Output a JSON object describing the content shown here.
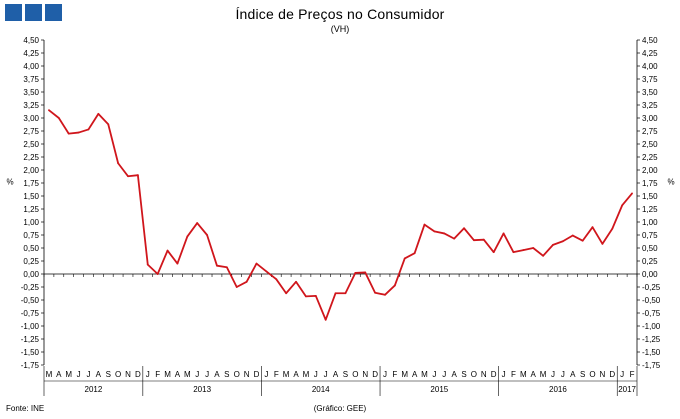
{
  "header": {
    "title": "Índice de Preços no Consumidor",
    "subtitle": "(VH)"
  },
  "footer": {
    "source": "Fonte: INE",
    "credit": "(Gráfico: GEE)"
  },
  "chart_data": {
    "type": "line",
    "title": "Índice de Preços no Consumidor",
    "subtitle": "(VH)",
    "ylabel_left": "%",
    "ylabel_right": "%",
    "ylim": [
      -1.75,
      4.5
    ],
    "ytick_step": 0.25,
    "ytick_labels": [
      "4,50",
      "4,25",
      "4,00",
      "3,75",
      "3,50",
      "3,25",
      "3,00",
      "2,75",
      "2,50",
      "2,25",
      "2,00",
      "1,75",
      "1,50",
      "1,25",
      "1,00",
      "0,75",
      "0,50",
      "0,25",
      "0,00",
      "-0,25",
      "-0,50",
      "-0,75",
      "-1,00",
      "-1,25",
      "-1,50",
      "-1,75"
    ],
    "month_labels": [
      "M",
      "A",
      "M",
      "J",
      "J",
      "A",
      "S",
      "O",
      "N",
      "D",
      "J",
      "F",
      "M",
      "A",
      "M",
      "J",
      "J",
      "A",
      "S",
      "O",
      "N",
      "D",
      "J",
      "F",
      "M",
      "A",
      "M",
      "J",
      "J",
      "A",
      "S",
      "O",
      "N",
      "D",
      "J",
      "F",
      "M",
      "A",
      "M",
      "J",
      "J",
      "A",
      "S",
      "O",
      "N",
      "D",
      "J",
      "F",
      "M",
      "A",
      "M",
      "J",
      "J",
      "A",
      "S",
      "O",
      "N",
      "D",
      "J",
      "F"
    ],
    "year_groups": [
      {
        "label": "2012",
        "start": 0,
        "end": 9
      },
      {
        "label": "2013",
        "start": 10,
        "end": 21
      },
      {
        "label": "2014",
        "start": 22,
        "end": 33
      },
      {
        "label": "2015",
        "start": 34,
        "end": 45
      },
      {
        "label": "2016",
        "start": 46,
        "end": 57
      },
      {
        "label": "2017",
        "start": 58,
        "end": 59
      }
    ],
    "series": [
      {
        "color": "#d0161c",
        "values": [
          3.15,
          3.0,
          2.7,
          2.72,
          2.78,
          3.08,
          2.88,
          2.13,
          1.88,
          1.9,
          0.18,
          0.0,
          0.45,
          0.2,
          0.72,
          0.98,
          0.75,
          0.16,
          0.13,
          -0.25,
          -0.15,
          0.2,
          0.05,
          -0.1,
          -0.37,
          -0.15,
          -0.43,
          -0.42,
          -0.88,
          -0.37,
          -0.37,
          0.02,
          0.03,
          -0.36,
          -0.4,
          -0.22,
          0.3,
          0.4,
          0.95,
          0.82,
          0.78,
          0.68,
          0.88,
          0.65,
          0.66,
          0.42,
          0.78,
          0.42,
          0.46,
          0.5,
          0.35,
          0.56,
          0.63,
          0.74,
          0.64,
          0.9,
          0.58,
          0.87,
          1.32,
          1.55
        ]
      }
    ]
  }
}
